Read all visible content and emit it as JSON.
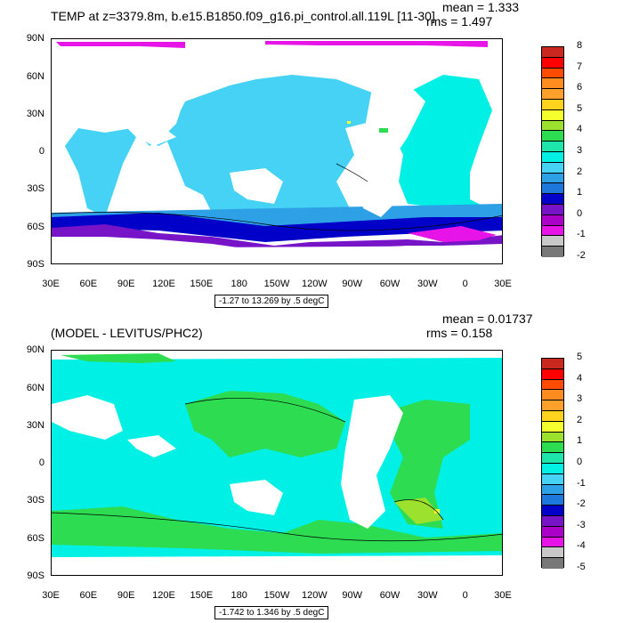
{
  "top": {
    "title": "TEMP at z=3379.8m, b.e15.B1850.f09_g16.pi_control.all.119L [11-30]",
    "mean": "mean = 1.333",
    "rms": "rms = 1.497",
    "range": "-1.27 to 13.269 by .5 degC",
    "lat_labels": [
      "90N",
      "60N",
      "30N",
      "0",
      "30S",
      "60S",
      "90S"
    ],
    "lon_labels": [
      "30E",
      "60E",
      "90E",
      "120E",
      "150E",
      "180",
      "150W",
      "120W",
      "90W",
      "60W",
      "30W",
      "0",
      "30E"
    ],
    "colorbar_labels": [
      "8",
      "7",
      "6",
      "5",
      "4",
      "3",
      "2",
      "1",
      "0",
      "-1",
      "-2"
    ],
    "colorbar_colors": [
      "#c8281e",
      "#ff0000",
      "#ff4c00",
      "#ff8c1e",
      "#ffa02d",
      "#ffd21e",
      "#f5ff2d",
      "#9be12d",
      "#2ddc50",
      "#1ee6aa",
      "#00f0e6",
      "#46d2f5",
      "#2da0e6",
      "#1e78dc",
      "#0000c8",
      "#7814c8",
      "#aa00c8",
      "#e614e6",
      "#c8c8c8",
      "#787878"
    ]
  },
  "bottom": {
    "title": "(MODEL - LEVITUS/PHC2)",
    "mean": "mean = 0.01737",
    "rms": "rms = 0.158",
    "range": "-1.742 to 1.346 by .5 degC",
    "lat_labels": [
      "90N",
      "60N",
      "30N",
      "0",
      "30S",
      "60S",
      "90S"
    ],
    "lon_labels": [
      "30E",
      "60E",
      "90E",
      "120E",
      "150E",
      "180",
      "150W",
      "120W",
      "90W",
      "60W",
      "30W",
      "0",
      "30E"
    ],
    "colorbar_labels": [
      "5",
      "4",
      "3",
      "2",
      "1",
      "0",
      "-1",
      "-2",
      "-3",
      "-4",
      "-5"
    ],
    "colorbar_colors": [
      "#c8281e",
      "#ff0000",
      "#ff4c00",
      "#ff8c1e",
      "#ffa02d",
      "#ffd21e",
      "#f5ff2d",
      "#9be12d",
      "#2ddc50",
      "#1ee6aa",
      "#00f0e6",
      "#46d2f5",
      "#2da0e6",
      "#1e78dc",
      "#0000c8",
      "#7814c8",
      "#aa00c8",
      "#e614e6",
      "#c8c8c8",
      "#787878"
    ]
  }
}
